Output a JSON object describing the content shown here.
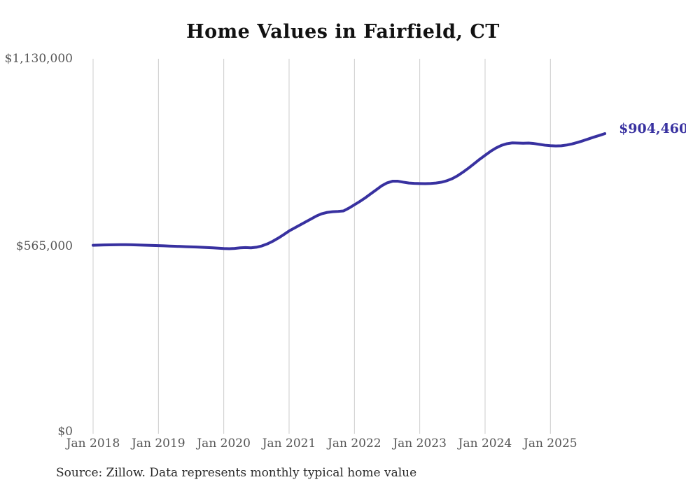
{
  "chart_data": {
    "type": "line",
    "title": "Home Values in Fairfield, CT",
    "source_note": "Source: Zillow. Data represents monthly typical home value",
    "end_label": "$904,460",
    "end_value": 904460,
    "ylim": [
      0,
      1130000
    ],
    "grid": "vertical-only",
    "legend": "none",
    "colors": {
      "line": "#3831a0",
      "grid": "#cccccc",
      "axis_text": "#555555",
      "end_label": "#3831a0"
    },
    "x_tick_labels": [
      "Jan 2018",
      "Jan 2019",
      "Jan 2020",
      "Jan 2021",
      "Jan 2022",
      "Jan 2023",
      "Jan 2024",
      "Jan 2025"
    ],
    "y_ticks": [
      {
        "label": "$1,130,000",
        "value": 1130000
      },
      {
        "label": "$565,000",
        "value": 565000
      },
      {
        "label": "$0",
        "value": 0
      }
    ],
    "x_start_month": "2018-01",
    "x_end_month": "2025-11",
    "series": [
      {
        "name": "Typical home value (monthly)",
        "values": [
          568000,
          568400,
          568900,
          569300,
          569600,
          569800,
          569700,
          569400,
          569000,
          568500,
          568000,
          567400,
          566800,
          566200,
          565600,
          565000,
          564400,
          563800,
          563200,
          562600,
          561900,
          561100,
          560200,
          559200,
          558200,
          557600,
          558400,
          560200,
          561000,
          560200,
          562000,
          566000,
          572000,
          580000,
          589500,
          600000,
          611000,
          620000,
          629000,
          638000,
          647000,
          656000,
          663000,
          667000,
          669000,
          670000,
          671500,
          680000,
          690000,
          700000,
          711000,
          723000,
          735000,
          747000,
          756000,
          761000,
          761000,
          758000,
          755500,
          754500,
          754000,
          753800,
          754200,
          755500,
          758000,
          762500,
          769000,
          778000,
          789000,
          801000,
          814000,
          827000,
          839000,
          851000,
          861000,
          869000,
          874000,
          876500,
          876000,
          875500,
          876000,
          874500,
          872000,
          869500,
          868000,
          867200,
          867800,
          870000,
          873500,
          878000,
          883000,
          888500,
          894000,
          899000,
          904460
        ]
      }
    ]
  }
}
